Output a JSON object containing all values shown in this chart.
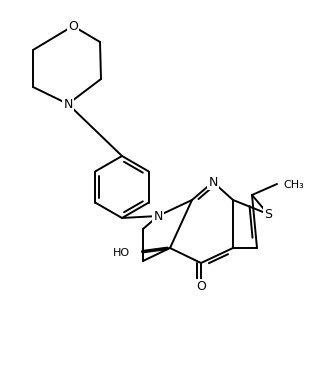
{
  "bg_color": "#ffffff",
  "line_color": "#000000",
  "lw": 1.4,
  "fs": 8.5,
  "atoms": {
    "note": "All coordinates in plot space (x right, y up), image is 317x358"
  }
}
